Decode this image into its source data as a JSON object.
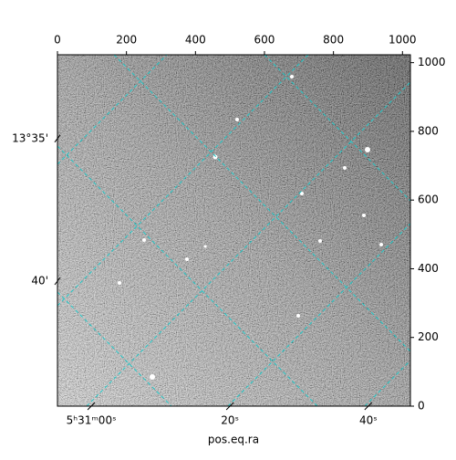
{
  "chart_data": {
    "type": "image",
    "xlabel": "pos.eq.ra",
    "xlim": [
      0,
      1023
    ],
    "ylim": [
      0,
      1023
    ],
    "xticks": [
      0,
      200,
      400,
      600,
      800,
      1000
    ],
    "yticks": [
      0,
      200,
      400,
      600,
      800,
      1000
    ],
    "ra_ticks": [
      {
        "value": 98,
        "label": "5ʰ31ᵐ00ˢ"
      },
      {
        "value": 500,
        "label": "20ˢ"
      },
      {
        "value": 901,
        "label": "40ˢ"
      }
    ],
    "dec_ticks": [
      {
        "value": 779,
        "label": "13°35'"
      },
      {
        "value": 364,
        "label": "40'"
      }
    ],
    "grid_color": "#20c8c8",
    "cmap": "gray"
  }
}
